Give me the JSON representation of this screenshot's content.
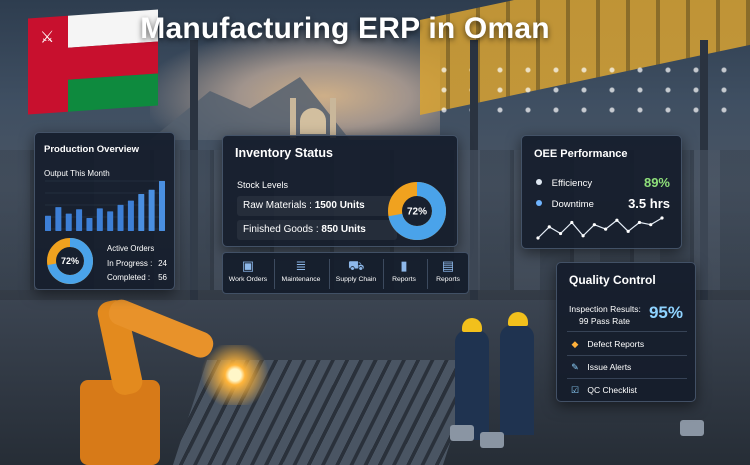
{
  "title": "Manufacturing ERP in Oman",
  "production": {
    "title": "Production Overview",
    "subtitle": "Output This Month",
    "bars": [
      35,
      55,
      40,
      50,
      30,
      52,
      45,
      60,
      70,
      85,
      95,
      115
    ],
    "donut_label": "72%",
    "donut_value": 72,
    "orders_title": "Active Orders",
    "in_progress_label": "In Progress :",
    "in_progress_value": "24",
    "completed_label": "Completed :",
    "completed_value": "56"
  },
  "inventory": {
    "title": "Inventory Status",
    "subtitle": "Stock Levels",
    "raw_label": "Raw Materials :",
    "raw_value": "1500 Units",
    "finished_label": "Finished Goods :",
    "finished_value": "850 Units",
    "donut_label": "72%",
    "donut_value": 72
  },
  "toolbar": {
    "items": [
      {
        "label": "Work Orders",
        "icon": "clipboard-icon"
      },
      {
        "label": "Maintenance",
        "icon": "server-icon"
      },
      {
        "label": "Supply Chain",
        "icon": "truck-icon"
      },
      {
        "label": "Reports",
        "icon": "bar-chart-icon"
      },
      {
        "label": "Reports",
        "icon": "document-icon"
      }
    ]
  },
  "oee": {
    "title": "OEE Performance",
    "efficiency_label": "Efficiency",
    "efficiency_value": "89%",
    "downtime_label": "Downtime",
    "downtime_value": "3.5 hrs",
    "trend": [
      4,
      9,
      6,
      11,
      5,
      10,
      8,
      12,
      7,
      11,
      10,
      13
    ],
    "colors": {
      "efficiency": "#8fe07a",
      "downtime": "#ffffff"
    }
  },
  "quality": {
    "title": "Quality Control",
    "inspection_label": "Inspection Results:",
    "inspection_sub": "99 Pass Rate",
    "inspection_value": "95%",
    "items": [
      {
        "label": "Defect Reports",
        "icon": "warning-icon"
      },
      {
        "label": "Issue Alerts",
        "icon": "pencil-icon"
      },
      {
        "label": "QC Checklist",
        "icon": "checkbox-icon"
      }
    ]
  }
}
